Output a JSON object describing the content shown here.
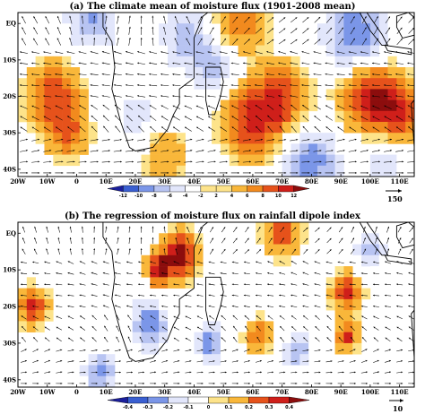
{
  "colors": {
    "palette": [
      "#1b1f9c",
      "#3a5fd1",
      "#7b96e8",
      "#b8c4f2",
      "#e2e6fb",
      "#ffffff",
      "#fde38a",
      "#f9b73a",
      "#f28a1e",
      "#e6521b",
      "#cf1f1a",
      "#8c0d0d"
    ],
    "land": "#000000",
    "arrow": "#000000"
  },
  "chart_data": [
    {
      "type": "vector-field-contour-map",
      "title": "(a) The climate mean of moisture flux (1901-2008 mean)",
      "x_ticks": [
        "20W",
        "10W",
        "0",
        "10E",
        "20E",
        "30E",
        "40E",
        "50E",
        "60E",
        "70E",
        "80E",
        "90E",
        "100E",
        "110E"
      ],
      "y_ticks": [
        "EQ",
        "10S",
        "20S",
        "30S",
        "40S"
      ],
      "xlim": [
        -20,
        115
      ],
      "ylim": [
        -42,
        3
      ],
      "colorbar": {
        "levels": [
          "-12",
          "-10",
          "-8",
          "-6",
          "-4",
          "-2",
          "2",
          "4",
          "6",
          "8",
          "10",
          "12"
        ]
      },
      "reference_vector": "150",
      "field_blobs": [
        {
          "lon": 5,
          "lat": 1,
          "val": -7,
          "r": 8
        },
        {
          "lon": 38,
          "lat": -4,
          "val": -6,
          "r": 9
        },
        {
          "lon": 48,
          "lat": -13,
          "val": -5,
          "r": 7
        },
        {
          "lon": 20,
          "lat": -26,
          "val": -4,
          "r": 7
        },
        {
          "lon": 80,
          "lat": -38,
          "val": -8,
          "r": 9
        },
        {
          "lon": 95,
          "lat": -3,
          "val": -9,
          "r": 10
        },
        {
          "lon": 105,
          "lat": -36,
          "val": -4,
          "r": 8
        },
        {
          "lon": -8,
          "lat": -20,
          "val": 8,
          "r": 9
        },
        {
          "lon": -3,
          "lat": -30,
          "val": 6,
          "r": 7
        },
        {
          "lon": 60,
          "lat": -27,
          "val": 9,
          "r": 10
        },
        {
          "lon": 70,
          "lat": -20,
          "val": 7,
          "r": 9
        },
        {
          "lon": 100,
          "lat": -20,
          "val": 10,
          "r": 10
        },
        {
          "lon": 110,
          "lat": -25,
          "val": 8,
          "r": 8
        },
        {
          "lon": 55,
          "lat": 0,
          "val": 6,
          "r": 9
        },
        {
          "lon": 30,
          "lat": -36,
          "val": 4,
          "r": 8
        }
      ]
    },
    {
      "type": "vector-field-contour-map",
      "title": "(b) The regression of moisture flux on rainfall dipole index",
      "x_ticks": [
        "20W",
        "10W",
        "0",
        "10E",
        "20E",
        "30E",
        "40E",
        "50E",
        "60E",
        "70E",
        "80E",
        "90E",
        "100E",
        "110E"
      ],
      "y_ticks": [
        "EQ",
        "10S",
        "20S",
        "30S",
        "40S"
      ],
      "xlim": [
        -20,
        115
      ],
      "ylim": [
        -42,
        3
      ],
      "colorbar": {
        "levels": [
          "-0.4",
          "-0.3",
          "-0.2",
          "-0.1",
          "0",
          "0.1",
          "0.2",
          "0.3",
          "0.4"
        ]
      },
      "reference_vector": "10",
      "field_blobs": [
        {
          "lon": 35,
          "lat": -6,
          "val": 0.4,
          "r": 6
        },
        {
          "lon": 28,
          "lat": -10,
          "val": 0.35,
          "r": 4
        },
        {
          "lon": -15,
          "lat": -20,
          "val": 0.3,
          "r": 5
        },
        {
          "lon": 70,
          "lat": 0,
          "val": 0.25,
          "r": 6
        },
        {
          "lon": 62,
          "lat": -28,
          "val": 0.2,
          "r": 5
        },
        {
          "lon": 92,
          "lat": -16,
          "val": 0.3,
          "r": 5
        },
        {
          "lon": 92,
          "lat": -28,
          "val": 0.3,
          "r": 4
        },
        {
          "lon": 25,
          "lat": -25,
          "val": -0.3,
          "r": 6
        },
        {
          "lon": 45,
          "lat": -30,
          "val": -0.25,
          "r": 5
        },
        {
          "lon": 75,
          "lat": -32,
          "val": -0.2,
          "r": 5
        },
        {
          "lon": 100,
          "lat": -5,
          "val": -0.2,
          "r": 5
        },
        {
          "lon": 8,
          "lat": -38,
          "val": -0.25,
          "r": 5
        }
      ]
    }
  ]
}
